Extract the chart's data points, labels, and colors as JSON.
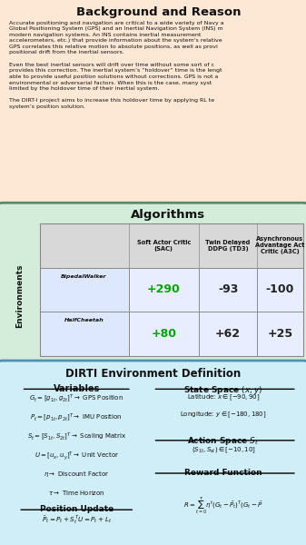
{
  "title_section": {
    "title": "Background and Reason",
    "bg_color": "#fce8d5",
    "border_color": "#d4a060",
    "text_color": "#1a1a1a",
    "body_text": [
      "Accurate positioning and navigation are critical to a wide variety of Navy a",
      "Global Positioning System (GPS) and an Inertial Navigation System (INS) m",
      "modern navigation systems. An INS contains inertial measurement",
      "accelerometers, etc.) that provide information about the system's relative",
      "GPS correlates this relative motion to absolute positions, as well as provi",
      "positional drift from the inertial sensors.",
      "",
      "Even the best inertial sensors will drift over time without some sort of c",
      "provides this correction. The inertial system’s “holdover” time is the lengt",
      "able to provide useful position solutions without corrections. GPS is not a",
      "environmental or adversarial factors. When this is the case, many syst",
      "limited by the holdover time of their inertial system.",
      "",
      "The DIRT-I project aims to increase this holdover time by applying RL te",
      "system’s position solution."
    ]
  },
  "algo_section": {
    "title": "Algorithms",
    "bg_color": "#d4edda",
    "border_color": "#5a8a6a",
    "header_bg": "#d8d8d8",
    "col_headers": [
      "Soft Actor Critic\n(SAC)",
      "Twin Delayed\nDDPG (TD3)",
      "Asynchronous\nAdvantage Act\nCritic (A3C)"
    ],
    "rows": [
      {
        "env_name": "BipedalWalker",
        "values": [
          "+290",
          "-93",
          "-100"
        ],
        "value_colors": [
          "#00aa00",
          "#222222",
          "#222222"
        ]
      },
      {
        "env_name": "HalfCheetah",
        "values": [
          "+80",
          "+62",
          "+25"
        ],
        "value_colors": [
          "#00aa00",
          "#222222",
          "#222222"
        ]
      }
    ],
    "y_label": "Environments"
  },
  "def_section": {
    "title": "DIRTI Environment Definition",
    "bg_color": "#d0eef8",
    "border_color": "#5090b0",
    "left_col": {
      "subtitle": "Variables",
      "lines": [
        "$G_t = [g_{1t}, g_{2t}]^T \\rightarrow$ GPS Position",
        "$P_t = [p_{1t}, p_{2t}]^T \\rightarrow$ IMU Position",
        "$S_t = [S_{1t}, S_{2t}]^T \\rightarrow$ Scaling Matrix",
        "$U = [u_x, u_y]^T \\rightarrow$ Unit Vector",
        "$\\eta \\rightarrow$ Discount Factor",
        "$\\tau \\rightarrow$ Time Horizon"
      ],
      "pos_update_title": "Position Update",
      "pos_update_eq": "$\\bar{P}_t = P_t + S_t^T U = P_t + L_t$"
    },
    "right_col": {
      "state_title": "State Space $(x, y)$",
      "state_lines": [
        "Latitude: $x \\in [-90, 90]$",
        "Longitude: $y \\in [-180, 180]$"
      ],
      "action_title": "Action Space $S_t$",
      "action_lines": [
        "$(S_{1t}, S_{st}) \\in [-10, 10]$"
      ],
      "reward_title": "Reward Function",
      "reward_eq": "$R = \\sum_{t=0}^{\\tau} \\eta^t (G_t - \\bar{P}_t)^T (G_t - \\bar{P}$"
    }
  }
}
